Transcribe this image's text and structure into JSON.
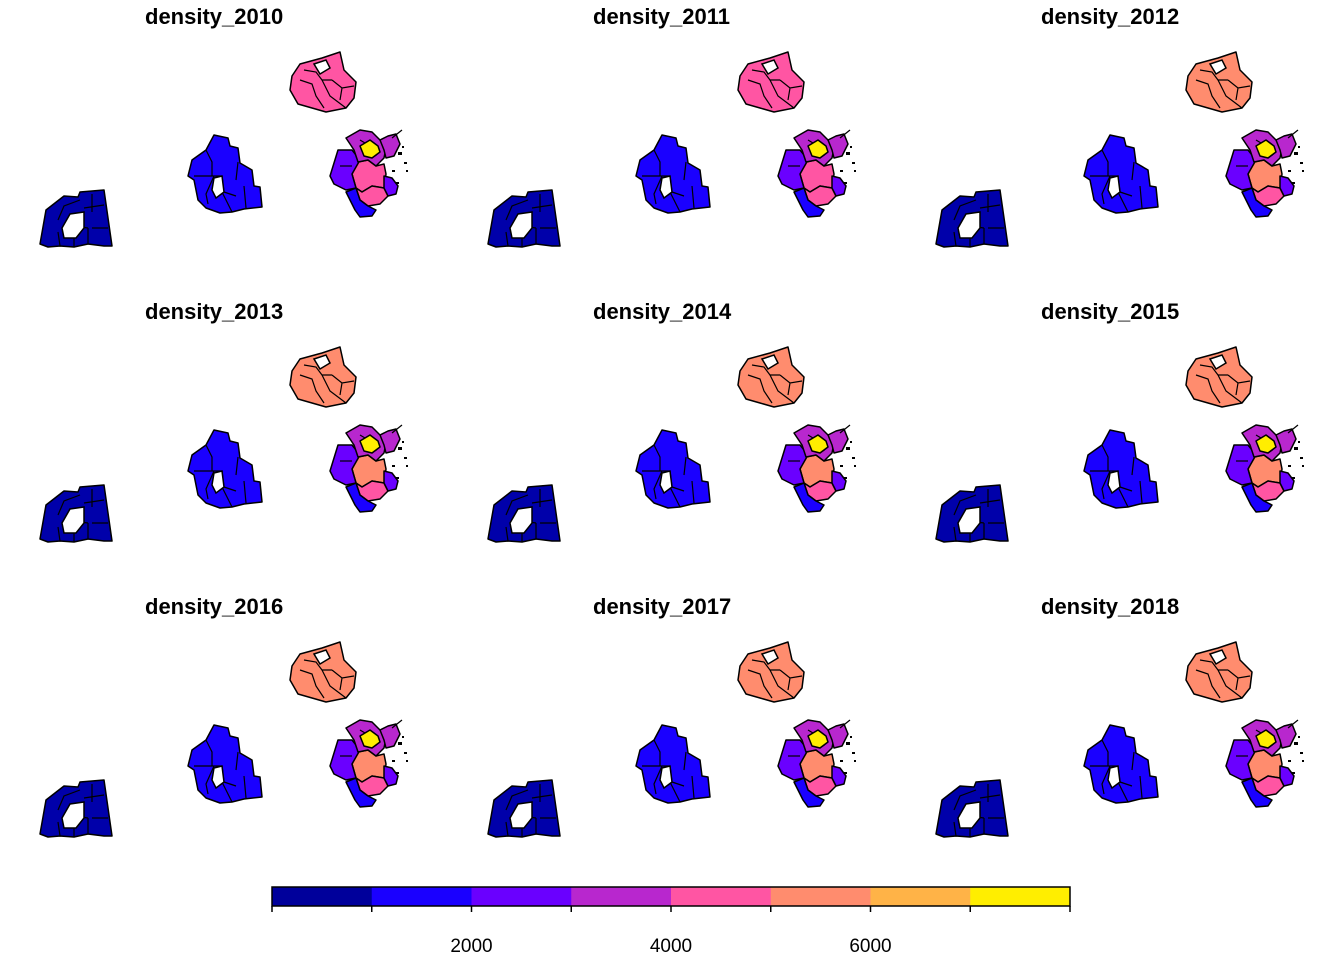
{
  "panels": [
    {
      "title": "density_2010",
      "fills": [
        "#0000aa",
        "#1a00ff",
        "#ff55a3",
        "#ff55a3",
        "#6a00ff",
        "#b827ce",
        "#ffee00",
        "#ff55a3",
        "#6a00ff",
        "#b827ce",
        "#1a00ff"
      ]
    },
    {
      "title": "density_2011",
      "fills": [
        "#0000aa",
        "#1a00ff",
        "#ff55a3",
        "#ff55a3",
        "#6a00ff",
        "#b827ce",
        "#ffee00",
        "#ff55a3",
        "#6a00ff",
        "#b827ce",
        "#1a00ff"
      ]
    },
    {
      "title": "density_2012",
      "fills": [
        "#0000aa",
        "#1a00ff",
        "#ff8c6e",
        "#ff8c6e",
        "#6a00ff",
        "#b827ce",
        "#ffee00",
        "#ff55a3",
        "#6a00ff",
        "#b827ce",
        "#1a00ff"
      ]
    },
    {
      "title": "density_2013",
      "fills": [
        "#0000aa",
        "#1a00ff",
        "#ff8c6e",
        "#ff8c6e",
        "#6a00ff",
        "#b827ce",
        "#ffee00",
        "#ff55a3",
        "#6a00ff",
        "#b827ce",
        "#1a00ff"
      ]
    },
    {
      "title": "density_2014",
      "fills": [
        "#0000aa",
        "#1a00ff",
        "#ff8c6e",
        "#ff8c6e",
        "#6a00ff",
        "#b827ce",
        "#ffee00",
        "#ff55a3",
        "#6a00ff",
        "#b827ce",
        "#1a00ff"
      ]
    },
    {
      "title": "density_2015",
      "fills": [
        "#0000aa",
        "#1a00ff",
        "#ff8c6e",
        "#ff8c6e",
        "#6a00ff",
        "#b827ce",
        "#ffee00",
        "#ff55a3",
        "#6a00ff",
        "#b827ce",
        "#1a00ff"
      ]
    },
    {
      "title": "density_2016",
      "fills": [
        "#0000aa",
        "#1a00ff",
        "#ff8c6e",
        "#ff8c6e",
        "#6a00ff",
        "#b827ce",
        "#ffee00",
        "#ff55a3",
        "#6a00ff",
        "#b827ce",
        "#1a00ff"
      ]
    },
    {
      "title": "density_2017",
      "fills": [
        "#0000aa",
        "#1a00ff",
        "#ff8c6e",
        "#ff8c6e",
        "#6a00ff",
        "#b827ce",
        "#ffee00",
        "#ff55a3",
        "#6a00ff",
        "#b827ce",
        "#1a00ff"
      ]
    },
    {
      "title": "density_2018",
      "fills": [
        "#0000aa",
        "#1a00ff",
        "#ff8c6e",
        "#ff8c6e",
        "#6a00ff",
        "#b827ce",
        "#ffee00",
        "#ff55a3",
        "#6a00ff",
        "#b827ce",
        "#1a00ff"
      ]
    }
  ],
  "legend": {
    "colors": [
      "#00009b",
      "#1a00ff",
      "#6a00ff",
      "#b827ce",
      "#ff55a3",
      "#ff8c6e",
      "#ffb347",
      "#ffee00"
    ],
    "ticks": [
      "2000",
      "4000",
      "6000"
    ]
  }
}
